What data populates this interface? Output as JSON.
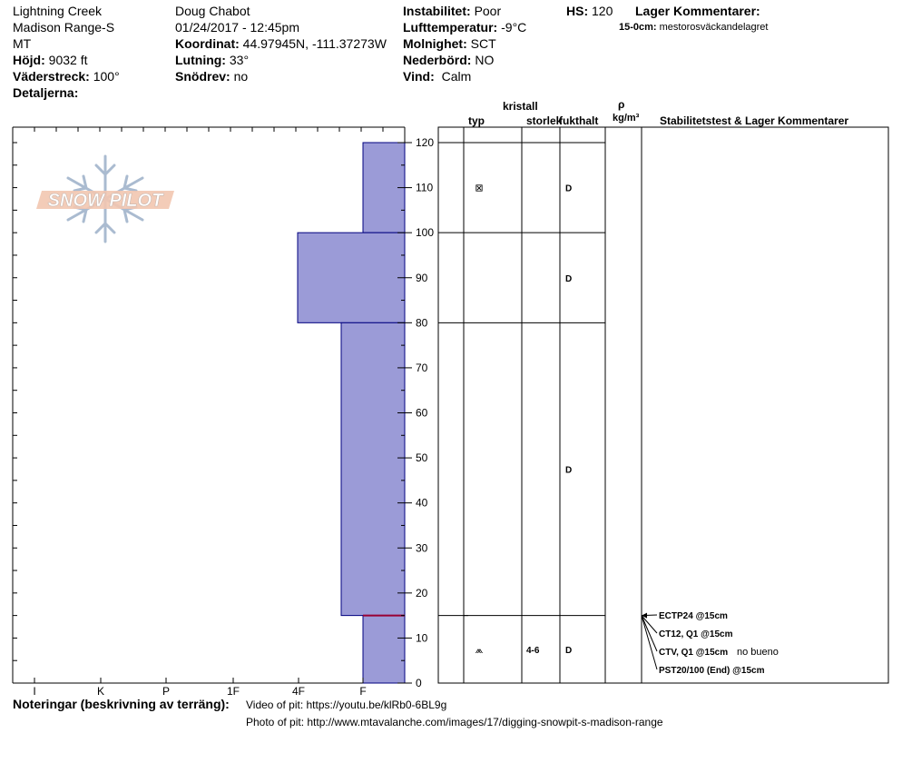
{
  "header": {
    "location_name": "Lightning Creek",
    "range": "Madison Range-S",
    "state": "MT",
    "elevation_label": "Höjd:",
    "elevation_value": "9032 ft",
    "aspect_label": "Väderstreck:",
    "aspect_value": "100°",
    "details_label": "Detaljerna:",
    "observer": "Doug Chabot",
    "datetime": "01/24/2017 - 12:45pm",
    "coord_label": "Koordinat:",
    "coord_value": "44.97945N, -111.37273W",
    "slope_label": "Lutning:",
    "slope_value": "33°",
    "drift_label": "Snödrev:",
    "drift_value": "no",
    "instability_label": "Instabilitet:",
    "instability_value": "Poor",
    "airtemp_label": "Lufttemperatur:",
    "airtemp_value": "-9°C",
    "clouds_label": "Molnighet:",
    "clouds_value": "SCT",
    "precip_label": "Nederbörd:",
    "precip_value": "NO",
    "wind_label": "Vind:",
    "wind_value": "Calm",
    "hs_label": "HS:",
    "hs_value": "120",
    "layer_comments_label": "Lager Kommentarer:",
    "layer_comment_depth": "15-0cm:",
    "layer_comment_text": "mestorosväckandelagret"
  },
  "logo": {
    "text": "SNOW PILOT"
  },
  "table_headers": {
    "crystal": "kristall",
    "type": "typ",
    "size": "storlek",
    "moisture": "fukthalt",
    "density_symbol": "ρ",
    "density_unit": "kg/m³",
    "stability": "Stabilitetstest & Lager Kommentarer"
  },
  "layers": [
    {
      "top": 120,
      "bottom": 100,
      "type_symbol": "⊠",
      "size": "",
      "moisture": "D"
    },
    {
      "top": 100,
      "bottom": 80,
      "type_symbol": "",
      "size": "",
      "moisture": "D"
    },
    {
      "top": 80,
      "bottom": 15,
      "type_symbol": "",
      "size": "",
      "moisture": "D"
    },
    {
      "top": 15,
      "bottom": 0,
      "type_symbol": "⩕",
      "size": "4-6",
      "moisture": "D"
    }
  ],
  "stability_tests": [
    {
      "label": "ECTP24 @15cm"
    },
    {
      "label": "CT12, Q1 @15cm"
    },
    {
      "label": "CTV, Q1 @15cm",
      "comment": "no bueno"
    },
    {
      "label": "PST20/100 (End) @15cm"
    }
  ],
  "footer": {
    "notes_label": "Noteringar (beskrivning av terräng):",
    "video_text": "Video of pit: https://youtu.be/klRb0-6BL9g",
    "photo_text": "Photo of pit: http://www.mtavalanche.com/images/17/digging-snowpit-s-madison-range"
  },
  "chart_data": {
    "type": "bar",
    "orientation": "horizontal",
    "title": "",
    "xlabel": "",
    "ylabel": "",
    "hardness_scale": [
      "I",
      "K",
      "P",
      "1F",
      "4F",
      "F"
    ],
    "height_ticks": [
      "120",
      "110",
      "100",
      "90",
      "80",
      "70",
      "60",
      "50",
      "40",
      "30",
      "20",
      "10",
      "0"
    ],
    "ylim": [
      0,
      120
    ],
    "hardness_profile": [
      {
        "top": 120,
        "bottom": 100,
        "hardness": "F+"
      },
      {
        "top": 100,
        "bottom": 80,
        "hardness": "4F-"
      },
      {
        "top": 80,
        "bottom": 15,
        "hardness": "F-"
      },
      {
        "top": 15,
        "bottom": 0,
        "hardness": "F+"
      }
    ],
    "weak_layer_depth": 15,
    "colors": {
      "fill": "#9b9bd7",
      "stroke": "#00007f",
      "weak_layer": "#990033"
    }
  }
}
